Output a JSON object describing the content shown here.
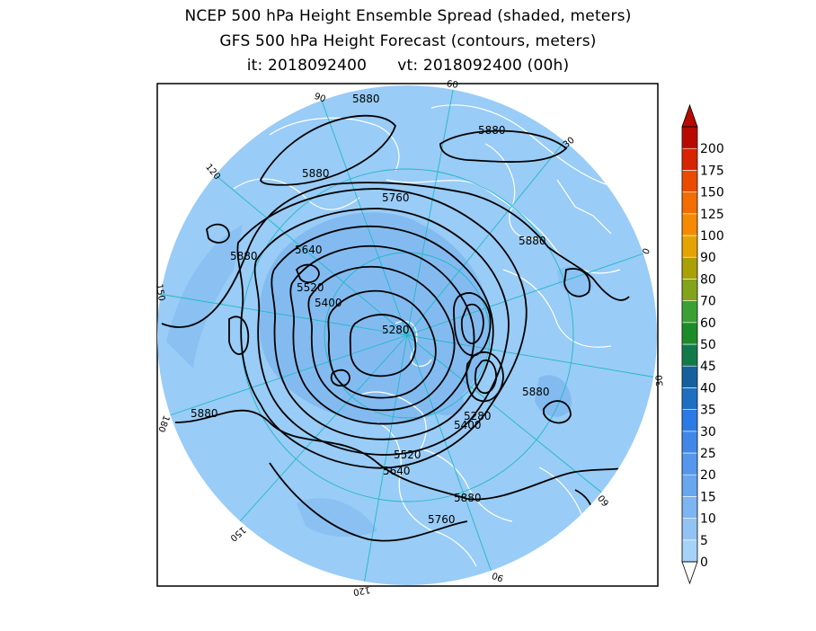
{
  "title": {
    "line1": "NCEP 500 hPa Height Ensemble Spread (shaded, meters)",
    "line2": "GFS 500 hPa Height Forecast (contours, meters)",
    "init_time": "it: 2018092400",
    "valid_time": "vt: 2018092400 (00h)"
  },
  "colors": {
    "ocean": "#99ccf6",
    "spread_low": "#7fb7ef",
    "land_line": "#ffffff",
    "grid_line": "#22b8c8",
    "contour": "#000000"
  },
  "meridian_labels": [
    "60",
    "30",
    "0",
    "30",
    "60",
    "90",
    "120",
    "150",
    "180",
    "150",
    "120",
    "90"
  ],
  "contour_labels": [
    "5880",
    "5880",
    "5880",
    "5880",
    "5880",
    "5880",
    "5880",
    "5880",
    "5760",
    "5760",
    "5640",
    "5640",
    "5520",
    "5520",
    "5400",
    "5400",
    "5280",
    "5280"
  ],
  "colorbar": {
    "levels": [
      "0",
      "5",
      "10",
      "15",
      "20",
      "25",
      "30",
      "35",
      "40",
      "45",
      "50",
      "60",
      "70",
      "80",
      "90",
      "100",
      "125",
      "150",
      "175",
      "200"
    ],
    "colors": [
      "#a6d2f8",
      "#92c3f5",
      "#7db4f2",
      "#68a6ef",
      "#5497ec",
      "#3f88e9",
      "#2b7ae6",
      "#1e6fc2",
      "#16609e",
      "#127a4a",
      "#1c8c2a",
      "#3aa033",
      "#82a31a",
      "#aaa005",
      "#e6a300",
      "#f58a00",
      "#f36d00",
      "#ea4b00",
      "#d82400",
      "#b80a00"
    ]
  }
}
